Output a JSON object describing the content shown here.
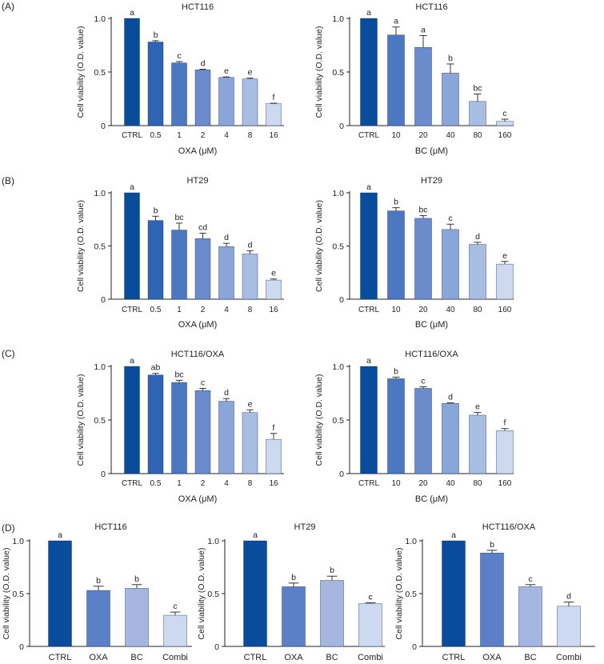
{
  "panel_labels": [
    "(A)",
    "(B)",
    "(C)",
    "(D)"
  ],
  "colors": {
    "ctrl": "#0a4c9c",
    "shades": [
      "#2f64b4",
      "#4b78c1",
      "#6a8ccd",
      "#8aa6d8",
      "#a8bde2",
      "#cdd9f0"
    ],
    "d_shades": [
      "#0a4c9c",
      "#5b80c8",
      "#a5b7e0",
      "#cdd9f0"
    ],
    "axis": "#222222",
    "error": "#333333"
  },
  "chart_data": [
    {
      "panel": "A",
      "type": "bar",
      "title": "HCT116",
      "xlabel": "OXA (μM)",
      "ylabel": "Cell viability (O.D. value)",
      "categories": [
        "CTRL",
        "0.5",
        "1",
        "2",
        "4",
        "8",
        "16"
      ],
      "values": [
        1.0,
        0.78,
        0.585,
        0.52,
        0.45,
        0.435,
        0.205
      ],
      "errors": [
        0.0,
        0.012,
        0.012,
        0.006,
        0.004,
        0.008,
        0.004
      ],
      "letters": [
        "a",
        "b",
        "c",
        "d",
        "e",
        "e",
        "f"
      ],
      "yticks": [
        "0",
        "0.5",
        "1.0"
      ],
      "ylim": [
        0,
        1.0
      ]
    },
    {
      "panel": "A",
      "type": "bar",
      "title": "HCT116",
      "xlabel": "BC (μM)",
      "ylabel": "Cell viability (O.D. value)",
      "categories": [
        "CTRL",
        "10",
        "20",
        "40",
        "80",
        "160"
      ],
      "values": [
        1.0,
        0.845,
        0.73,
        0.49,
        0.225,
        0.04
      ],
      "errors": [
        0.0,
        0.075,
        0.11,
        0.085,
        0.07,
        0.02
      ],
      "letters": [
        "a",
        "a",
        "a",
        "b",
        "bc",
        "c"
      ],
      "yticks": [
        "0",
        "0.5",
        "1.0"
      ],
      "ylim": [
        0,
        1.0
      ]
    },
    {
      "panel": "B",
      "type": "bar",
      "title": "HT29",
      "xlabel": "OXA (μM)",
      "ylabel": "Cell viability (O.D. value)",
      "categories": [
        "CTRL",
        "0.5",
        "1",
        "2",
        "4",
        "8",
        "16"
      ],
      "values": [
        1.0,
        0.74,
        0.65,
        0.57,
        0.495,
        0.425,
        0.18
      ],
      "errors": [
        0.0,
        0.04,
        0.065,
        0.05,
        0.03,
        0.03,
        0.01
      ],
      "letters": [
        "a",
        "b",
        "bc",
        "cd",
        "d",
        "d",
        "e"
      ],
      "yticks": [
        "0",
        "0.5",
        "1.0"
      ],
      "ylim": [
        0,
        1.0
      ]
    },
    {
      "panel": "B",
      "type": "bar",
      "title": "HT29",
      "xlabel": "BC (μM)",
      "ylabel": "Cell viability (O.D. value)",
      "categories": [
        "CTRL",
        "10",
        "20",
        "40",
        "80",
        "160"
      ],
      "values": [
        1.0,
        0.83,
        0.76,
        0.655,
        0.515,
        0.33
      ],
      "errors": [
        0.0,
        0.03,
        0.025,
        0.05,
        0.02,
        0.025
      ],
      "letters": [
        "a",
        "b",
        "bc",
        "c",
        "d",
        "e"
      ],
      "yticks": [
        "0",
        "0.5",
        "1.0"
      ],
      "ylim": [
        0,
        1.0
      ]
    },
    {
      "panel": "C",
      "type": "bar",
      "title": "HCT116/OXA",
      "xlabel": "OXA (μM)",
      "ylabel": "Cell viability (O.D. value)",
      "categories": [
        "CTRL",
        "0.5",
        "1",
        "2",
        "4",
        "8",
        "16"
      ],
      "values": [
        1.0,
        0.92,
        0.85,
        0.775,
        0.675,
        0.57,
        0.32
      ],
      "errors": [
        0.0,
        0.015,
        0.02,
        0.02,
        0.025,
        0.025,
        0.055
      ],
      "letters": [
        "a",
        "ab",
        "bc",
        "c",
        "d",
        "e",
        "f"
      ],
      "yticks": [
        "0",
        "0.5",
        "1.0"
      ],
      "ylim": [
        0,
        1.0
      ]
    },
    {
      "panel": "C",
      "type": "bar",
      "title": "HCT116/OXA",
      "xlabel": "BC (μM)",
      "ylabel": "Cell viability (O.D. value)",
      "categories": [
        "CTRL",
        "10",
        "20",
        "40",
        "80",
        "160"
      ],
      "values": [
        1.0,
        0.885,
        0.795,
        0.655,
        0.545,
        0.4
      ],
      "errors": [
        0.0,
        0.015,
        0.015,
        0.005,
        0.025,
        0.02
      ],
      "letters": [
        "a",
        "b",
        "c",
        "d",
        "e",
        "f"
      ],
      "yticks": [
        "0",
        "0.5",
        "1.0"
      ],
      "ylim": [
        0,
        1.0
      ]
    },
    {
      "panel": "D",
      "type": "bar",
      "title": "HCT116",
      "xlabel": "",
      "ylabel": "Cell viability (O.D. value)",
      "categories": [
        "CTRL",
        "OXA",
        "BC",
        "Combi"
      ],
      "values": [
        1.0,
        0.53,
        0.55,
        0.295
      ],
      "errors": [
        0.0,
        0.04,
        0.035,
        0.03
      ],
      "letters": [
        "a",
        "b",
        "b",
        "c"
      ],
      "yticks": [
        "0",
        "0.5",
        "1.0"
      ],
      "ylim": [
        0,
        1.0
      ]
    },
    {
      "panel": "D",
      "type": "bar",
      "title": "HT29",
      "xlabel": "",
      "ylabel": "Cell viability (O.D. value)",
      "categories": [
        "CTRL",
        "OXA",
        "BC",
        "Combi"
      ],
      "values": [
        1.0,
        0.565,
        0.625,
        0.405
      ],
      "errors": [
        0.0,
        0.035,
        0.04,
        0.008
      ],
      "letters": [
        "a",
        "b",
        "b",
        "c"
      ],
      "yticks": [
        "0",
        "0.5",
        "1.0"
      ],
      "ylim": [
        0,
        1.0
      ]
    },
    {
      "panel": "D",
      "type": "bar",
      "title": "HCT116/OXA",
      "xlabel": "",
      "ylabel": "Cell viability (O.D. value)",
      "categories": [
        "CTRL",
        "OXA",
        "BC",
        "Combi"
      ],
      "values": [
        1.0,
        0.885,
        0.565,
        0.38
      ],
      "errors": [
        0.0,
        0.025,
        0.02,
        0.04
      ],
      "letters": [
        "a",
        "b",
        "c",
        "d"
      ],
      "yticks": [
        "0",
        "0.5",
        "1.0"
      ],
      "ylim": [
        0,
        1.0
      ]
    }
  ]
}
